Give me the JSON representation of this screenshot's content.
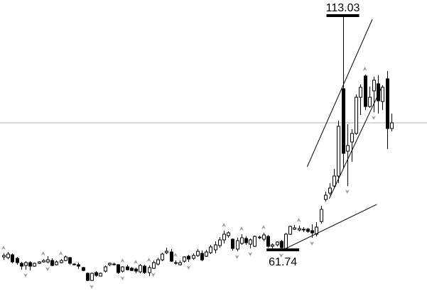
{
  "chart_data": {
    "type": "candlestick",
    "xlim": [
      -0.8,
      96.1
    ],
    "ylim": [
      52.73,
      116.44
    ],
    "grid": false,
    "colors": {
      "bull_fill": "#ffffff",
      "bear_fill": "#000000",
      "wick": "#000000",
      "fractal": "#9a9a9a",
      "hline": "#b0b0b0"
    },
    "candles": [
      [
        60.19,
        60.97,
        59.56,
        60.5
      ],
      [
        60.03,
        61.27,
        59.72,
        60.81
      ],
      [
        60.66,
        60.97,
        58.79,
        59.1
      ],
      [
        59.88,
        60.19,
        58.48,
        58.94
      ],
      [
        58.79,
        59.1,
        57.39,
        58.17
      ],
      [
        58.32,
        59.25,
        57.39,
        58.94
      ],
      [
        58.94,
        59.25,
        57.23,
        58.17
      ],
      [
        58.17,
        58.94,
        58.01,
        58.79
      ],
      [
        58.79,
        59.25,
        58.63,
        59.1
      ],
      [
        59.1,
        59.72,
        58.94,
        59.41
      ],
      [
        59.1,
        60.34,
        58.79,
        59.56
      ],
      [
        59.41,
        59.88,
        58.17,
        58.32
      ],
      [
        58.48,
        59.41,
        58.32,
        59.1
      ],
      [
        58.94,
        59.72,
        58.79,
        59.41
      ],
      [
        59.41,
        60.5,
        59.25,
        60.19
      ],
      [
        60.03,
        60.19,
        58.48,
        58.79
      ],
      [
        58.63,
        58.79,
        58.32,
        58.48
      ],
      [
        58.48,
        58.94,
        57.54,
        58.17
      ],
      [
        57.86,
        58.01,
        57.08,
        57.23
      ],
      [
        56.61,
        56.77,
        54.9,
        55.05
      ],
      [
        55.05,
        56.77,
        54.9,
        56.61
      ],
      [
        56.77,
        57.08,
        55.83,
        56.14
      ],
      [
        55.99,
        56.77,
        55.99,
        56.61
      ],
      [
        57.08,
        58.32,
        56.77,
        58.01
      ],
      [
        58.48,
        58.94,
        58.17,
        58.79
      ],
      [
        58.48,
        58.94,
        58.32,
        58.63
      ],
      [
        58.48,
        58.63,
        56.46,
        56.77
      ],
      [
        57.08,
        58.17,
        56.77,
        58.01
      ],
      [
        58.01,
        58.48,
        57.23,
        57.39
      ],
      [
        57.7,
        58.01,
        57.08,
        57.23
      ],
      [
        57.54,
        57.86,
        56.61,
        57.08
      ],
      [
        56.92,
        58.63,
        56.61,
        58.32
      ],
      [
        58.17,
        58.48,
        56.46,
        56.77
      ],
      [
        56.77,
        58.32,
        55.99,
        57.86
      ],
      [
        57.7,
        59.41,
        57.54,
        58.94
      ],
      [
        58.63,
        60.03,
        58.32,
        59.56
      ],
      [
        59.56,
        61.12,
        59.25,
        60.81
      ],
      [
        61.12,
        62.21,
        60.81,
        61.43
      ],
      [
        61.27,
        61.9,
        59.1,
        59.25
      ],
      [
        58.94,
        59.41,
        58.48,
        58.79
      ],
      [
        58.48,
        59.41,
        58.32,
        58.94
      ],
      [
        59.25,
        60.34,
        58.94,
        60.19
      ],
      [
        60.34,
        60.66,
        59.1,
        59.72
      ],
      [
        59.88,
        60.97,
        59.56,
        60.5
      ],
      [
        60.5,
        61.9,
        60.19,
        61.43
      ],
      [
        60.97,
        61.59,
        59.25,
        59.56
      ],
      [
        60.34,
        61.74,
        60.19,
        61.27
      ],
      [
        61.12,
        62.83,
        60.81,
        62.36
      ],
      [
        61.74,
        63.6,
        60.97,
        62.83
      ],
      [
        62.67,
        64.54,
        62.21,
        63.92
      ],
      [
        63.92,
        65.94,
        63.14,
        65.16
      ],
      [
        64.85,
        65.78,
        64.38,
        65.47
      ],
      [
        64.07,
        64.23,
        61.59,
        62.05
      ],
      [
        61.9,
        64.38,
        61.43,
        63.76
      ],
      [
        63.14,
        65.16,
        62.83,
        64.38
      ],
      [
        64.23,
        64.69,
        62.83,
        63.29
      ],
      [
        62.98,
        64.23,
        62.05,
        63.92
      ],
      [
        62.52,
        64.85,
        62.36,
        64.69
      ],
      [
        64.38,
        64.85,
        64.07,
        64.54
      ],
      [
        64.07,
        65.47,
        63.6,
        65.0
      ],
      [
        64.69,
        65.0,
        62.21,
        62.52
      ],
      [
        62.52,
        63.14,
        62.05,
        62.83
      ],
      [
        62.83,
        63.6,
        62.52,
        63.45
      ],
      [
        63.6,
        63.92,
        61.74,
        62.21
      ],
      [
        62.05,
        65.47,
        61.9,
        65.16
      ],
      [
        65.16,
        67.02,
        65.0,
        66.87
      ],
      [
        66.25,
        67.18,
        66.09,
        66.56
      ],
      [
        66.09,
        67.02,
        65.78,
        66.4
      ],
      [
        66.09,
        66.71,
        65.63,
        66.25
      ],
      [
        66.25,
        66.56,
        65.47,
        65.78
      ],
      [
        65.94,
        67.34,
        64.38,
        65.47
      ],
      [
        65.16,
        67.8,
        64.69,
        66.71
      ],
      [
        67.95,
        71.37,
        67.49,
        70.6
      ],
      [
        72.77,
        74.48,
        72.31,
        73.7
      ],
      [
        74.17,
        76.35,
        73.7,
        75.26
      ],
      [
        75.72,
        79.45,
        75.26,
        77.9
      ],
      [
        77.9,
        90.02,
        76.35,
        88.78
      ],
      [
        97.02,
        113.03,
        79.45,
        82.87
      ],
      [
        83.34,
        89.24,
        75.72,
        84.58
      ],
      [
        85.36,
        88.16,
        81.01,
        87.23
      ],
      [
        87.23,
        95.77,
        86.91,
        95.15
      ],
      [
        95.15,
        97.95,
        91.27,
        97.33
      ],
      [
        99.81,
        100.12,
        92.35,
        93.13
      ],
      [
        93.13,
        97.48,
        92.82,
        95.15
      ],
      [
        96.55,
        99.66,
        91.89,
        98.88
      ],
      [
        98.1,
        99.97,
        91.58,
        94.37
      ],
      [
        94.22,
        97.79,
        92.35,
        97.33
      ],
      [
        99.19,
        100.9,
        83.8,
        88.31
      ],
      [
        88.31,
        91.57,
        87.69,
        89.56
      ]
    ],
    "fractals_up": [
      0,
      9,
      13,
      27,
      30,
      33,
      39,
      50,
      54,
      59,
      67,
      82
    ],
    "fractals_down": [
      5,
      10,
      20,
      27,
      34,
      42,
      53,
      56,
      63,
      70,
      78,
      84
    ],
    "horizontal_line": 89.56,
    "trend_lines": [
      {
        "from": [
          68.9,
          79.92
        ],
        "to": [
          83.7,
          112.24
        ]
      },
      {
        "from": [
          73.9,
          72.93
        ],
        "to": [
          85.8,
          97.33
        ]
      },
      {
        "from": [
          63.4,
          61.74
        ],
        "to": [
          84.7,
          71.69
        ]
      }
    ],
    "annotations": [
      {
        "text": "113.03",
        "index": 77,
        "price": 113.03,
        "position": "above"
      },
      {
        "text": "61.74",
        "index": 63.4,
        "price": 61.74,
        "position": "below"
      }
    ]
  }
}
